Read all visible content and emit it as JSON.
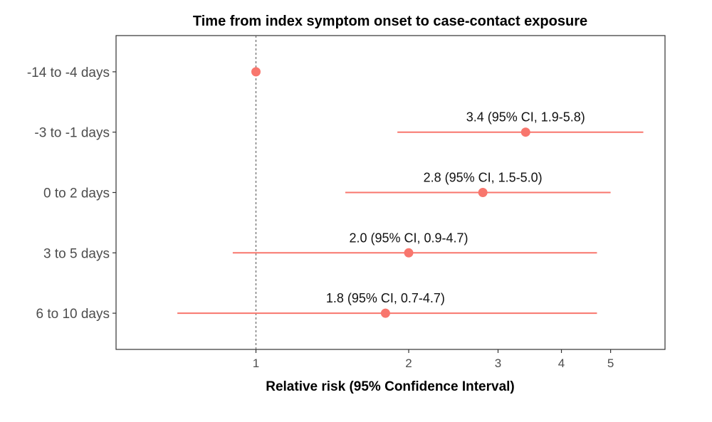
{
  "chart_data": {
    "type": "scatter",
    "subtype": "forest-plot",
    "title": "Time from index symptom onset to case-contact exposure",
    "xlabel": "Relative risk (95% Confidence Interval)",
    "ylabel": "",
    "xscale": "log",
    "xlim": [
      0.53,
      6.4
    ],
    "xticks": [
      1,
      2,
      3,
      4,
      5
    ],
    "xtick_labels": [
      "1",
      "2",
      "3",
      "4",
      "5"
    ],
    "reference_line": 1,
    "grid": false,
    "legend": "none",
    "color": "#f8766d",
    "categories": [
      "-14 to -4 days",
      "-3 to -1 days",
      "0 to 2 days",
      "3 to 5 days",
      "6 to 10 days"
    ],
    "estimates": [
      1.0,
      3.4,
      2.8,
      2.0,
      1.8
    ],
    "ci_low": [
      null,
      1.9,
      1.5,
      0.9,
      0.7
    ],
    "ci_high": [
      null,
      5.8,
      5.0,
      4.7,
      4.7
    ],
    "labels": [
      "",
      "3.4 (95% CI, 1.9-5.8)",
      "2.8 (95% CI, 1.5-5.0)",
      "2.0 (95% CI, 0.9-4.7)",
      "1.8 (95% CI, 0.7-4.7)"
    ]
  }
}
